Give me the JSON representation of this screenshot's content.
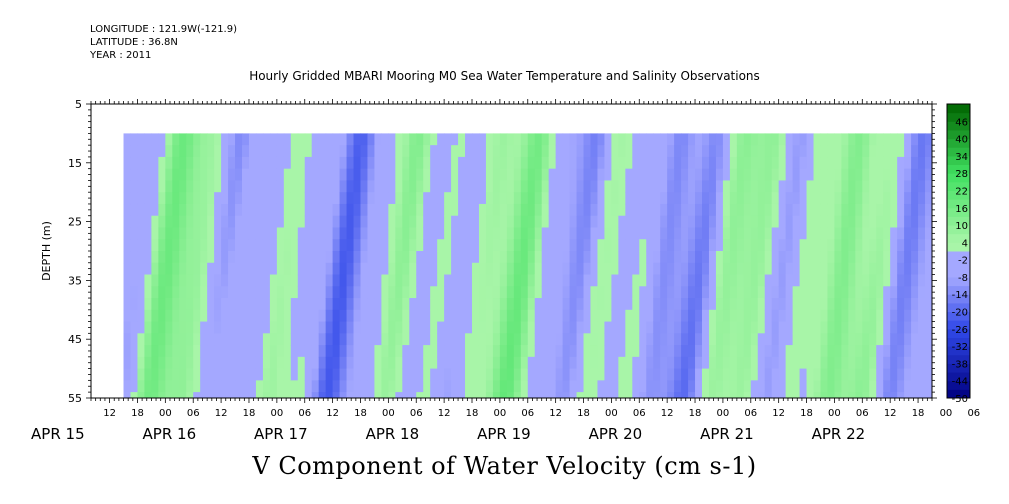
{
  "header": {
    "longitude": "LONGITUDE : 121.9W(-121.9)",
    "latitude": "LATITUDE : 36.8N",
    "year": "YEAR : 2011"
  },
  "chart_data": {
    "type": "heatmap",
    "title": "Hourly Gridded MBARI Mooring M0 Sea Water Temperature and Salinity Observations",
    "variable_label": "V Component of Water Velocity (cm s-1)",
    "ylabel": "DEPTH (m)",
    "y_ticks": [
      5,
      15,
      25,
      35,
      45,
      55
    ],
    "ylim": [
      55,
      5
    ],
    "data_depth_range": [
      10,
      55
    ],
    "x_hour_ticks": [
      "12",
      "18",
      "00",
      "06",
      "12",
      "18",
      "00",
      "06",
      "12",
      "18",
      "00",
      "06",
      "12",
      "18",
      "00",
      "06",
      "12",
      "18",
      "00",
      "06",
      "12",
      "18",
      "00",
      "06",
      "12",
      "18",
      "00",
      "06",
      "12",
      "18",
      "00",
      "06"
    ],
    "x_day_labels": [
      "APR 15",
      "APR 16",
      "APR 17",
      "APR 18",
      "APR 19",
      "APR 20",
      "APR 21",
      "APR 22"
    ],
    "xlim_hours_from_apr15_00": [
      8,
      189
    ],
    "data_time_range_hours": [
      15,
      189
    ],
    "colorbar": {
      "labels": [
        "46",
        "40",
        "34",
        "28",
        "22",
        "16",
        "10",
        "4",
        "-2",
        "-8",
        "-14",
        "-20",
        "-26",
        "-32",
        "-38",
        "-44",
        "-50"
      ],
      "range": [
        -50,
        52
      ]
    },
    "colors": {
      "strong_negative": "#000080",
      "negative": "#3048e8",
      "weak_negative": "#a4a8ff",
      "weak_positive": "#a8f5a8",
      "positive": "#40e060",
      "strong_positive": "#006400"
    },
    "grid": false,
    "legend_placement": "right"
  }
}
